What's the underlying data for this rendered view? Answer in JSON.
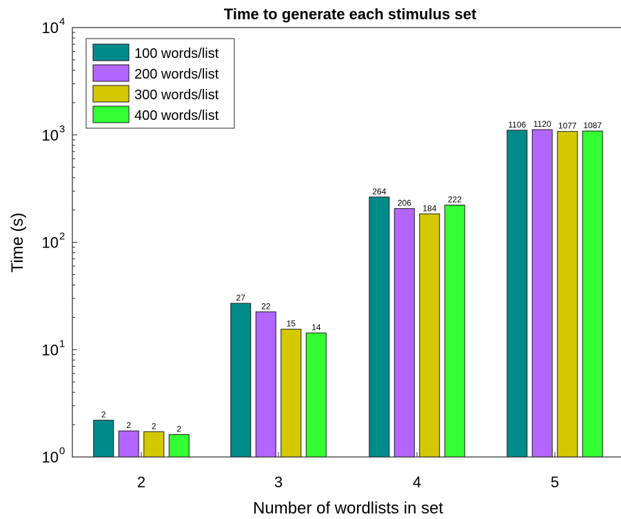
{
  "chart_data": {
    "type": "bar",
    "title": "Time to generate each stimulus set",
    "xlabel": "Number of wordlists in set",
    "ylabel": "Time (s)",
    "yscale": "log",
    "ylim": [
      1,
      10000
    ],
    "yticks": [
      {
        "base": "10",
        "exp": "0",
        "value": 1
      },
      {
        "base": "10",
        "exp": "1",
        "value": 10
      },
      {
        "base": "10",
        "exp": "2",
        "value": 100
      },
      {
        "base": "10",
        "exp": "3",
        "value": 1000
      },
      {
        "base": "10",
        "exp": "4",
        "value": 10000
      }
    ],
    "categories": [
      "2",
      "3",
      "4",
      "5"
    ],
    "series": [
      {
        "name": "100 words/list",
        "color": "#008b8b",
        "values": [
          2.2,
          27,
          264,
          1106
        ],
        "labels": [
          "2",
          "27",
          "264",
          "1106"
        ]
      },
      {
        "name": "200 words/list",
        "color": "#b266ff",
        "values": [
          1.75,
          22.5,
          206,
          1120
        ],
        "labels": [
          "2",
          "22",
          "206",
          "1120"
        ]
      },
      {
        "name": "300 words/list",
        "color": "#d4c800",
        "values": [
          1.72,
          15.5,
          184,
          1077
        ],
        "labels": [
          "2",
          "15",
          "184",
          "1077"
        ]
      },
      {
        "name": "400 words/list",
        "color": "#33ff33",
        "values": [
          1.62,
          14.3,
          222,
          1087
        ],
        "labels": [
          "2",
          "14",
          "222",
          "1087"
        ]
      }
    ],
    "legend_position": "top-left",
    "grid": false
  }
}
